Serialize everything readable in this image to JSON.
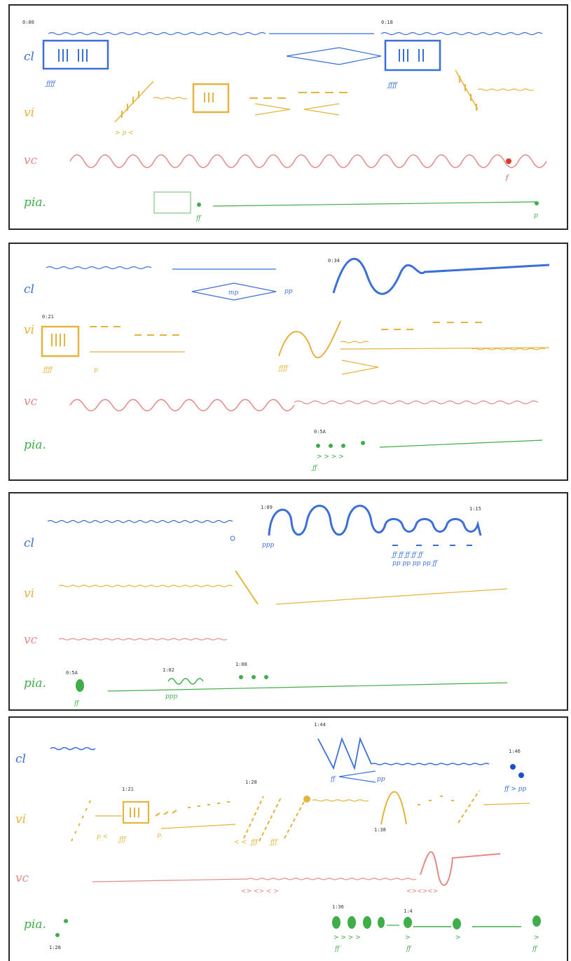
{
  "score": {
    "instruments": [
      {
        "key": "cl",
        "label": "cl",
        "color": "#3a6fd8"
      },
      {
        "key": "vi",
        "label": "vi",
        "color": "#e5b43a"
      },
      {
        "key": "vc",
        "label": "vc",
        "color": "#e38a86"
      },
      {
        "key": "pia",
        "label": "pia.",
        "color": "#3fae49"
      }
    ],
    "panels": [
      {
        "timestamps": [
          "0:00",
          "0:18"
        ],
        "dynamics": {
          "vi_middle": "> p <",
          "vc_end": "f",
          "pia_start": "ff",
          "pia_end": "p"
        }
      },
      {
        "timestamps": [
          "0:34",
          "0:21",
          "0:5A"
        ],
        "dynamics": {
          "cl_cresc": "mp",
          "cl_end": "pp",
          "vi_start": "p"
        }
      },
      {
        "timestamps": [
          "1:09",
          "1:15",
          "0:5A",
          "1:02",
          "1:08"
        ],
        "dynamics": {
          "cl_start": "ppp",
          "pia_start": "ff",
          "pia_mid": "ppp"
        }
      },
      {
        "timestamps": [
          "1:44",
          "1:21",
          "1:28",
          "1:38",
          "1:46",
          "1:28",
          "1:36",
          "1:4"
        ],
        "dynamics": {
          "cl_dyn1": "ff",
          "cl_dyn2": "pp",
          "cl_end": "ff > pp",
          "vi_p1": "p <",
          "vi_p2": "p.",
          "vi_cresc": "< < ",
          "pia_ff1": "ff",
          "pia_ff2": "ff",
          "pia_ff3": "ff"
        }
      }
    ]
  }
}
